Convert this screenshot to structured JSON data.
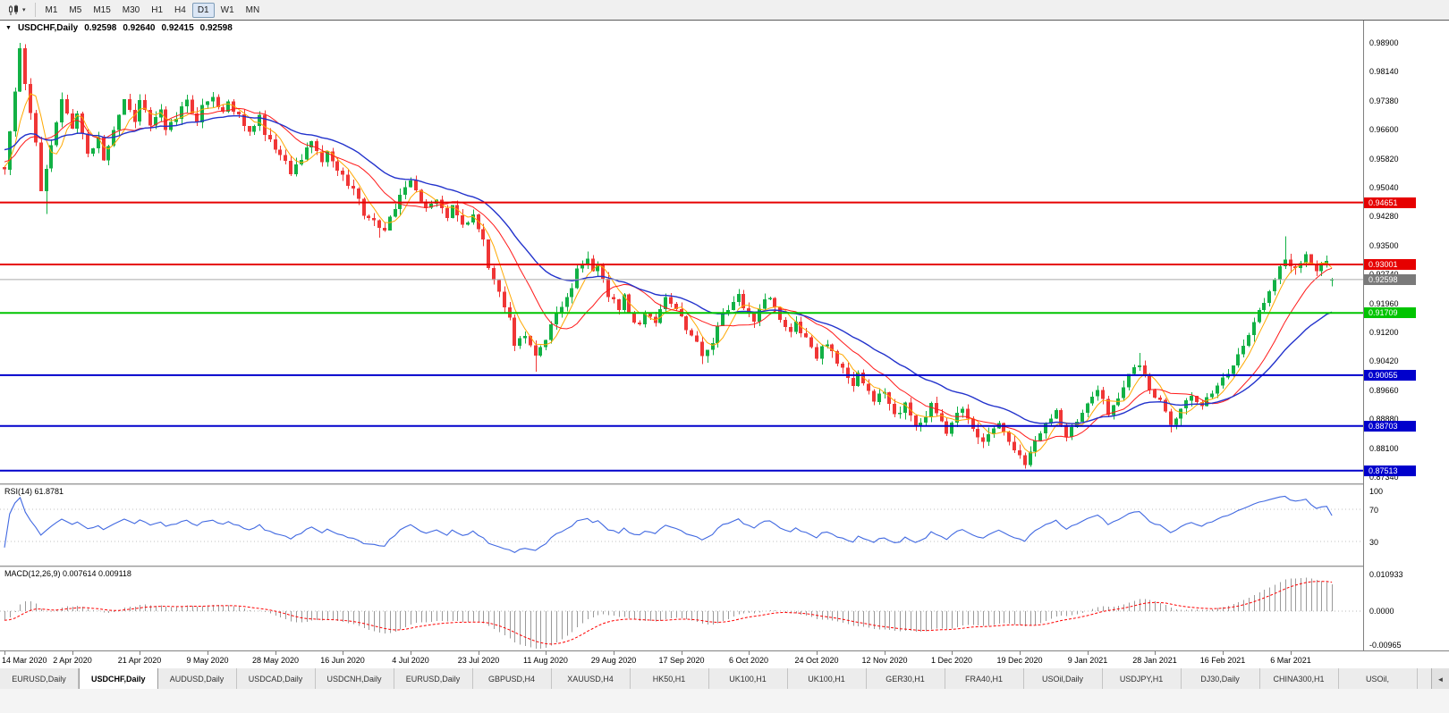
{
  "toolbar": {
    "caret": "▾",
    "timeframes": [
      "M1",
      "M5",
      "M15",
      "M30",
      "H1",
      "H4",
      "D1",
      "W1",
      "MN"
    ],
    "active_timeframe": "D1"
  },
  "chart": {
    "header": {
      "collapse_icon": "▼",
      "symbol": "USDCHF,Daily",
      "open": "0.92598",
      "high": "0.92640",
      "low": "0.92415",
      "close": "0.92598"
    },
    "price_scale": {
      "top": 0.989,
      "bottom": 0.8734,
      "labels": [
        "0.98900",
        "0.98140",
        "0.97380",
        "0.96600",
        "0.95820",
        "0.95040",
        "0.94280",
        "0.93500",
        "0.92740",
        "0.91960",
        "0.91200",
        "0.90420",
        "0.89660",
        "0.88880",
        "0.88100",
        "0.87340"
      ]
    },
    "hlines": [
      {
        "price": 0.94651,
        "label": "0.94651",
        "color": "#e60000"
      },
      {
        "price": 0.93001,
        "label": "0.93001",
        "color": "#e60000"
      },
      {
        "price": 0.91709,
        "label": "0.91709",
        "color": "#00c400"
      },
      {
        "price": 0.90055,
        "label": "0.90055",
        "color": "#0000cc"
      },
      {
        "price": 0.88703,
        "label": "0.88703",
        "color": "#0000cc"
      },
      {
        "price": 0.87513,
        "label": "0.87513",
        "color": "#0000cc"
      }
    ],
    "bid": {
      "price": 0.92598,
      "label": "0.92598",
      "badge_color": "#7a7a7a",
      "line_color": "#ababab"
    },
    "time_labels": [
      "14 Mar 2020",
      "2 Apr 2020",
      "21 Apr 2020",
      "9 May 2020",
      "28 May 2020",
      "16 Jun 2020",
      "4 Jul 2020",
      "23 Jul 2020",
      "11 Aug 2020",
      "29 Aug 2020",
      "17 Sep 2020",
      "6 Oct 2020",
      "24 Oct 2020",
      "12 Nov 2020",
      "1 Dec 2020",
      "19 Dec 2020",
      "9 Jan 2021",
      "28 Jan 2021",
      "16 Feb 2021",
      "6 Mar 2021"
    ]
  },
  "indicators": {
    "rsi": {
      "label": "RSI(14) 61.8781",
      "period": 14,
      "value": "61.8781",
      "scale_labels": [
        "100",
        "70",
        "30"
      ],
      "scale_values": [
        100,
        70,
        30
      ],
      "levels": [
        70,
        30
      ],
      "line_color": "#4169e1"
    },
    "macd": {
      "label": "MACD(12,26,9) 0.007614 0.009118",
      "macd_value": "0.007614",
      "signal_value": "0.009118",
      "scale_labels": [
        "0.010933",
        "0.0000",
        "-0.00965"
      ],
      "scale_values": [
        0.010933,
        0,
        -0.00965
      ],
      "scale_max": 0.010933,
      "scale_min": -0.00965,
      "histogram_color": "#9a9a9a",
      "signal_color": "#ff0000"
    }
  },
  "tabs": {
    "scroll_left_icon": "◄",
    "items": [
      {
        "label": "EURUSD,Daily",
        "active": false
      },
      {
        "label": "USDCHF,Daily",
        "active": true
      },
      {
        "label": "AUDUSD,Daily",
        "active": false
      },
      {
        "label": "USDCAD,Daily",
        "active": false
      },
      {
        "label": "USDCNH,Daily",
        "active": false
      },
      {
        "label": "EURUSD,Daily",
        "active": false
      },
      {
        "label": "GBPUSD,H4",
        "active": false
      },
      {
        "label": "XAUUSD,H4",
        "active": false
      },
      {
        "label": "HK50,H1",
        "active": false
      },
      {
        "label": "UK100,H1",
        "active": false
      },
      {
        "label": "UK100,H1",
        "active": false
      },
      {
        "label": "GER30,H1",
        "active": false
      },
      {
        "label": "FRA40,H1",
        "active": false
      },
      {
        "label": "USOil,Daily",
        "active": false
      },
      {
        "label": "USDJPY,H1",
        "active": false
      },
      {
        "label": "DJ30,Daily",
        "active": false
      },
      {
        "label": "CHINA300,H1",
        "active": false
      },
      {
        "label": "USOil,",
        "active": false
      }
    ]
  },
  "chart_data": {
    "type": "candlestick",
    "symbol": "USDCHF",
    "timeframe": "Daily",
    "bars": 256,
    "x_label_every": 13,
    "visible_price_range": [
      0.8734,
      0.989
    ],
    "bull_color": "#12b145",
    "bear_color": "#f03636",
    "seed": 73,
    "warmup": 60,
    "noise": 0.0016,
    "wick": 0.0018,
    "ma": [
      {
        "type": "sma",
        "period": 5,
        "color": "#ffa800",
        "width": 1
      },
      {
        "type": "sma",
        "period": 13,
        "color": "#ff1a1a",
        "width": 1
      },
      {
        "type": "ema",
        "period": 30,
        "color": "#2232cc",
        "width": 1.4
      }
    ],
    "price_path": [
      [
        -60,
        0.978
      ],
      [
        0,
        0.955
      ],
      [
        3,
        0.987
      ],
      [
        4,
        0.978
      ],
      [
        6,
        0.962
      ],
      [
        7,
        0.95
      ],
      [
        9,
        0.9615
      ],
      [
        11,
        0.974
      ],
      [
        13,
        0.9655
      ],
      [
        14,
        0.9705
      ],
      [
        16,
        0.9595
      ],
      [
        18,
        0.9635
      ],
      [
        19,
        0.9575
      ],
      [
        21,
        0.9665
      ],
      [
        23,
        0.9735
      ],
      [
        25,
        0.9685
      ],
      [
        26,
        0.9745
      ],
      [
        28,
        0.9675
      ],
      [
        30,
        0.9715
      ],
      [
        31,
        0.9655
      ],
      [
        33,
        0.9695
      ],
      [
        35,
        0.9735
      ],
      [
        37,
        0.9685
      ],
      [
        38,
        0.9725
      ],
      [
        40,
        0.9745
      ],
      [
        42,
        0.9705
      ],
      [
        43,
        0.9735
      ],
      [
        45,
        0.9695
      ],
      [
        47,
        0.9655
      ],
      [
        49,
        0.9695
      ],
      [
        50,
        0.9645
      ],
      [
        52,
        0.9605
      ],
      [
        54,
        0.9575
      ],
      [
        55,
        0.9535
      ],
      [
        57,
        0.9585
      ],
      [
        59,
        0.9625
      ],
      [
        61,
        0.9565
      ],
      [
        62,
        0.9605
      ],
      [
        64,
        0.9555
      ],
      [
        66,
        0.9515
      ],
      [
        68,
        0.9475
      ],
      [
        69,
        0.9435
      ],
      [
        71,
        0.9415
      ],
      [
        73,
        0.9385
      ],
      [
        74,
        0.9425
      ],
      [
        76,
        0.9485
      ],
      [
        78,
        0.9525
      ],
      [
        80,
        0.9465
      ],
      [
        81,
        0.9445
      ],
      [
        83,
        0.9475
      ],
      [
        85,
        0.9425
      ],
      [
        86,
        0.9455
      ],
      [
        88,
        0.9405
      ],
      [
        90,
        0.9435
      ],
      [
        92,
        0.9365
      ],
      [
        93,
        0.9295
      ],
      [
        95,
        0.9225
      ],
      [
        97,
        0.9155
      ],
      [
        98,
        0.9085
      ],
      [
        100,
        0.9115
      ],
      [
        102,
        0.9065
      ],
      [
        104,
        0.9105
      ],
      [
        105,
        0.9145
      ],
      [
        107,
        0.9185
      ],
      [
        109,
        0.9235
      ],
      [
        110,
        0.9285
      ],
      [
        112,
        0.9315
      ],
      [
        113,
        0.9275
      ],
      [
        114,
        0.9305
      ],
      [
        115,
        0.9255
      ],
      [
        116,
        0.9215
      ],
      [
        118,
        0.9185
      ],
      [
        119,
        0.9225
      ],
      [
        120,
        0.9165
      ],
      [
        122,
        0.9135
      ],
      [
        123,
        0.9175
      ],
      [
        125,
        0.9145
      ],
      [
        126,
        0.9185
      ],
      [
        127,
        0.9215
      ],
      [
        129,
        0.9185
      ],
      [
        130,
        0.9155
      ],
      [
        131,
        0.9125
      ],
      [
        133,
        0.9095
      ],
      [
        134,
        0.9055
      ],
      [
        136,
        0.9095
      ],
      [
        137,
        0.9135
      ],
      [
        138,
        0.9165
      ],
      [
        140,
        0.9195
      ],
      [
        141,
        0.9225
      ],
      [
        142,
        0.9185
      ],
      [
        144,
        0.9155
      ],
      [
        145,
        0.9185
      ],
      [
        147,
        0.9215
      ],
      [
        148,
        0.9185
      ],
      [
        149,
        0.9155
      ],
      [
        151,
        0.9125
      ],
      [
        152,
        0.9155
      ],
      [
        153,
        0.9125
      ],
      [
        155,
        0.9085
      ],
      [
        156,
        0.9055
      ],
      [
        158,
        0.9095
      ],
      [
        159,
        0.9065
      ],
      [
        160,
        0.9035
      ],
      [
        162,
        0.9005
      ],
      [
        163,
        0.8975
      ],
      [
        164,
        0.9005
      ],
      [
        166,
        0.8965
      ],
      [
        167,
        0.8935
      ],
      [
        169,
        0.8965
      ],
      [
        170,
        0.8925
      ],
      [
        171,
        0.8895
      ],
      [
        173,
        0.8925
      ],
      [
        174,
        0.8895
      ],
      [
        175,
        0.8865
      ],
      [
        177,
        0.8895
      ],
      [
        178,
        0.8925
      ],
      [
        180,
        0.8885
      ],
      [
        181,
        0.8855
      ],
      [
        182,
        0.8885
      ],
      [
        184,
        0.8915
      ],
      [
        185,
        0.8885
      ],
      [
        186,
        0.8855
      ],
      [
        188,
        0.8825
      ],
      [
        189,
        0.8855
      ],
      [
        191,
        0.8885
      ],
      [
        192,
        0.8855
      ],
      [
        193,
        0.8825
      ],
      [
        195,
        0.8795
      ],
      [
        196,
        0.8765
      ],
      [
        197,
        0.8805
      ],
      [
        199,
        0.8845
      ],
      [
        200,
        0.8875
      ],
      [
        202,
        0.8905
      ],
      [
        203,
        0.8875
      ],
      [
        204,
        0.8845
      ],
      [
        206,
        0.8875
      ],
      [
        207,
        0.8905
      ],
      [
        208,
        0.8935
      ],
      [
        210,
        0.8965
      ],
      [
        211,
        0.8935
      ],
      [
        212,
        0.8905
      ],
      [
        214,
        0.8945
      ],
      [
        215,
        0.8975
      ],
      [
        216,
        0.9005
      ],
      [
        218,
        0.9035
      ],
      [
        219,
        0.9005
      ],
      [
        220,
        0.8965
      ],
      [
        222,
        0.8935
      ],
      [
        223,
        0.8905
      ],
      [
        224,
        0.8875
      ],
      [
        226,
        0.8915
      ],
      [
        228,
        0.8945
      ],
      [
        230,
        0.8925
      ],
      [
        232,
        0.8955
      ],
      [
        234,
        0.8995
      ],
      [
        236,
        0.9035
      ],
      [
        238,
        0.9085
      ],
      [
        240,
        0.9145
      ],
      [
        242,
        0.9205
      ],
      [
        244,
        0.9265
      ],
      [
        246,
        0.9315
      ],
      [
        248,
        0.9285
      ],
      [
        250,
        0.932
      ],
      [
        252,
        0.929
      ],
      [
        254,
        0.931
      ],
      [
        255,
        0.926
      ]
    ],
    "wick_overrides": [
      [
        3,
        "h",
        0.989
      ],
      [
        8,
        "l",
        0.9435
      ],
      [
        72,
        "l",
        0.9372
      ],
      [
        102,
        "l",
        0.9015
      ],
      [
        112,
        "h",
        0.9335
      ],
      [
        134,
        "l",
        0.9035
      ],
      [
        196,
        "l",
        0.8757
      ],
      [
        218,
        "h",
        0.9065
      ],
      [
        224,
        "l",
        0.8853
      ],
      [
        246,
        "h",
        0.9375
      ]
    ],
    "last_candle": [
      0.92598,
      0.9264,
      0.92415,
      0.92598
    ]
  }
}
